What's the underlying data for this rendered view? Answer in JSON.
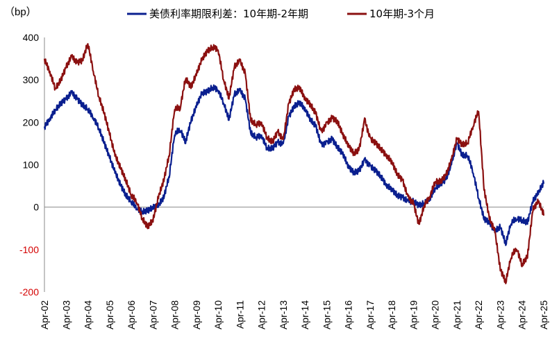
{
  "chart_data": {
    "type": "line",
    "unit_label": "（bp）",
    "ylim": [
      -200,
      400
    ],
    "y_ticks": [
      400,
      300,
      200,
      100,
      0,
      -100,
      -200
    ],
    "negative_tick_color": "#d40000",
    "x_ticks": [
      "Apr-02",
      "Apr-03",
      "Apr-04",
      "Apr-05",
      "Apr-06",
      "Apr-07",
      "Apr-08",
      "Apr-09",
      "Apr-10",
      "Apr-11",
      "Apr-12",
      "Apr-13",
      "Apr-14",
      "Apr-15",
      "Apr-16",
      "Apr-17",
      "Apr-18",
      "Apr-19",
      "Apr-20",
      "Apr-21",
      "Apr-22",
      "Apr-23",
      "Apr-24",
      "Apr-25"
    ],
    "x_start_year": 2002.25,
    "x_end_year": 2025.25,
    "legend_position": "top",
    "series": [
      {
        "name": "美债利率期限利差：10年期-2年期",
        "color": "#0a1f8f",
        "points": [
          [
            2002.25,
            190
          ],
          [
            2002.5,
            210
          ],
          [
            2002.75,
            230
          ],
          [
            2003.0,
            245
          ],
          [
            2003.25,
            255
          ],
          [
            2003.5,
            270
          ],
          [
            2003.75,
            255
          ],
          [
            2004.0,
            240
          ],
          [
            2004.25,
            230
          ],
          [
            2004.5,
            210
          ],
          [
            2004.75,
            185
          ],
          [
            2005.0,
            150
          ],
          [
            2005.25,
            115
          ],
          [
            2005.5,
            80
          ],
          [
            2005.75,
            50
          ],
          [
            2006.0,
            25
          ],
          [
            2006.25,
            10
          ],
          [
            2006.5,
            -5
          ],
          [
            2006.75,
            -15
          ],
          [
            2007.0,
            -12
          ],
          [
            2007.25,
            -5
          ],
          [
            2007.5,
            0
          ],
          [
            2007.75,
            20
          ],
          [
            2008.0,
            70
          ],
          [
            2008.25,
            170
          ],
          [
            2008.5,
            180
          ],
          [
            2008.75,
            150
          ],
          [
            2009.0,
            200
          ],
          [
            2009.25,
            235
          ],
          [
            2009.5,
            265
          ],
          [
            2009.75,
            270
          ],
          [
            2010.0,
            280
          ],
          [
            2010.25,
            275
          ],
          [
            2010.5,
            245
          ],
          [
            2010.75,
            205
          ],
          [
            2011.0,
            265
          ],
          [
            2011.25,
            275
          ],
          [
            2011.5,
            255
          ],
          [
            2011.75,
            175
          ],
          [
            2012.0,
            165
          ],
          [
            2012.25,
            170
          ],
          [
            2012.5,
            140
          ],
          [
            2012.75,
            140
          ],
          [
            2013.0,
            155
          ],
          [
            2013.25,
            150
          ],
          [
            2013.5,
            215
          ],
          [
            2013.75,
            240
          ],
          [
            2014.0,
            250
          ],
          [
            2014.25,
            235
          ],
          [
            2014.5,
            210
          ],
          [
            2014.75,
            195
          ],
          [
            2015.0,
            150
          ],
          [
            2015.25,
            155
          ],
          [
            2015.5,
            165
          ],
          [
            2015.75,
            145
          ],
          [
            2016.0,
            130
          ],
          [
            2016.25,
            100
          ],
          [
            2016.5,
            85
          ],
          [
            2016.75,
            90
          ],
          [
            2017.0,
            115
          ],
          [
            2017.25,
            100
          ],
          [
            2017.5,
            90
          ],
          [
            2017.75,
            75
          ],
          [
            2018.0,
            55
          ],
          [
            2018.25,
            45
          ],
          [
            2018.5,
            30
          ],
          [
            2018.75,
            25
          ],
          [
            2019.0,
            15
          ],
          [
            2019.25,
            15
          ],
          [
            2019.5,
            5
          ],
          [
            2019.75,
            10
          ],
          [
            2020.0,
            20
          ],
          [
            2020.25,
            45
          ],
          [
            2020.5,
            55
          ],
          [
            2020.75,
            65
          ],
          [
            2021.0,
            100
          ],
          [
            2021.25,
            150
          ],
          [
            2021.5,
            120
          ],
          [
            2021.75,
            120
          ],
          [
            2022.0,
            80
          ],
          [
            2022.25,
            20
          ],
          [
            2022.5,
            -30
          ],
          [
            2022.75,
            -40
          ],
          [
            2023.0,
            -60
          ],
          [
            2023.25,
            -50
          ],
          [
            2023.5,
            -90
          ],
          [
            2023.75,
            -40
          ],
          [
            2024.0,
            -30
          ],
          [
            2024.25,
            -35
          ],
          [
            2024.5,
            -40
          ],
          [
            2024.75,
            10
          ],
          [
            2025.0,
            30
          ],
          [
            2025.25,
            55
          ]
        ]
      },
      {
        "name": "10年期-3个月",
        "color": "#8b1010",
        "points": [
          [
            2002.25,
            350
          ],
          [
            2002.5,
            320
          ],
          [
            2002.75,
            280
          ],
          [
            2003.0,
            300
          ],
          [
            2003.25,
            330
          ],
          [
            2003.5,
            355
          ],
          [
            2003.75,
            340
          ],
          [
            2004.0,
            345
          ],
          [
            2004.25,
            385
          ],
          [
            2004.5,
            320
          ],
          [
            2004.75,
            260
          ],
          [
            2005.0,
            220
          ],
          [
            2005.25,
            170
          ],
          [
            2005.5,
            120
          ],
          [
            2005.75,
            90
          ],
          [
            2006.0,
            60
          ],
          [
            2006.25,
            25
          ],
          [
            2006.5,
            10
          ],
          [
            2006.75,
            -30
          ],
          [
            2007.0,
            -50
          ],
          [
            2007.25,
            -35
          ],
          [
            2007.5,
            20
          ],
          [
            2007.75,
            60
          ],
          [
            2008.0,
            120
          ],
          [
            2008.25,
            230
          ],
          [
            2008.5,
            230
          ],
          [
            2008.75,
            300
          ],
          [
            2009.0,
            280
          ],
          [
            2009.25,
            310
          ],
          [
            2009.5,
            345
          ],
          [
            2009.75,
            365
          ],
          [
            2010.0,
            375
          ],
          [
            2010.25,
            370
          ],
          [
            2010.5,
            300
          ],
          [
            2010.75,
            255
          ],
          [
            2011.0,
            330
          ],
          [
            2011.25,
            345
          ],
          [
            2011.5,
            315
          ],
          [
            2011.75,
            205
          ],
          [
            2012.0,
            195
          ],
          [
            2012.25,
            200
          ],
          [
            2012.5,
            165
          ],
          [
            2012.75,
            155
          ],
          [
            2013.0,
            180
          ],
          [
            2013.25,
            160
          ],
          [
            2013.5,
            245
          ],
          [
            2013.75,
            280
          ],
          [
            2014.0,
            285
          ],
          [
            2014.25,
            260
          ],
          [
            2014.5,
            245
          ],
          [
            2014.75,
            225
          ],
          [
            2015.0,
            180
          ],
          [
            2015.25,
            200
          ],
          [
            2015.5,
            215
          ],
          [
            2015.75,
            205
          ],
          [
            2016.0,
            175
          ],
          [
            2016.25,
            150
          ],
          [
            2016.5,
            130
          ],
          [
            2016.75,
            140
          ],
          [
            2017.0,
            210
          ],
          [
            2017.25,
            165
          ],
          [
            2017.5,
            155
          ],
          [
            2017.75,
            140
          ],
          [
            2018.0,
            125
          ],
          [
            2018.25,
            110
          ],
          [
            2018.5,
            80
          ],
          [
            2018.75,
            65
          ],
          [
            2019.0,
            25
          ],
          [
            2019.25,
            10
          ],
          [
            2019.5,
            -40
          ],
          [
            2019.75,
            5
          ],
          [
            2020.0,
            25
          ],
          [
            2020.25,
            60
          ],
          [
            2020.5,
            60
          ],
          [
            2020.75,
            75
          ],
          [
            2021.0,
            110
          ],
          [
            2021.25,
            160
          ],
          [
            2021.5,
            145
          ],
          [
            2021.75,
            150
          ],
          [
            2022.0,
            190
          ],
          [
            2022.25,
            225
          ],
          [
            2022.5,
            40
          ],
          [
            2022.75,
            -30
          ],
          [
            2023.0,
            -60
          ],
          [
            2023.25,
            -150
          ],
          [
            2023.5,
            -180
          ],
          [
            2023.75,
            -120
          ],
          [
            2024.0,
            -100
          ],
          [
            2024.25,
            -140
          ],
          [
            2024.5,
            -120
          ],
          [
            2024.75,
            -10
          ],
          [
            2025.0,
            10
          ],
          [
            2025.25,
            -20
          ]
        ]
      }
    ]
  }
}
